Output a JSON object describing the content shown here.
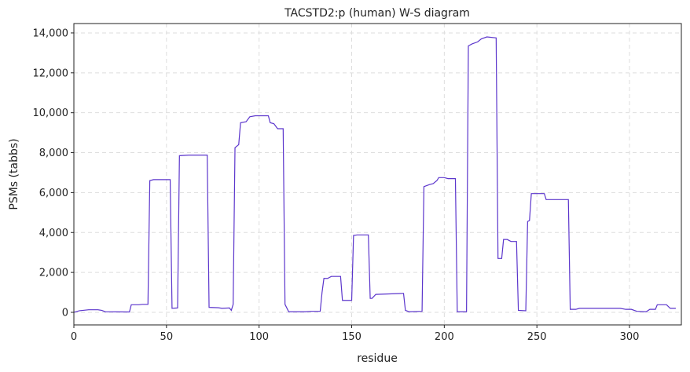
{
  "chart_data": {
    "type": "line",
    "title": "TACSTD2:p (human) W-S diagram",
    "x_label": "residue",
    "y_label": "PSMs (tabbs)",
    "xlim": [
      0,
      328
    ],
    "ylim": [
      -630,
      14470
    ],
    "xticks": [
      0,
      50,
      100,
      150,
      200,
      250,
      300
    ],
    "yticks": [
      0,
      {
        "value": 2000,
        "label": "2,000"
      },
      {
        "value": 4000,
        "label": "4,000"
      },
      {
        "value": 6000,
        "label": "6,000"
      },
      {
        "value": 8000,
        "label": "8,000"
      },
      {
        "value": 10000,
        "label": "10,000"
      },
      {
        "value": 12000,
        "label": "12,000"
      },
      {
        "value": 14000,
        "label": "14,000"
      }
    ],
    "grid": true,
    "x": [
      0,
      3,
      8,
      13,
      15,
      17,
      30,
      31,
      35,
      37,
      40,
      41,
      43,
      52,
      53,
      56,
      57,
      62,
      72,
      73,
      78,
      80,
      84,
      85,
      86,
      87,
      89,
      90,
      93,
      95,
      98,
      105,
      106,
      108,
      110,
      113,
      114,
      116,
      125,
      128,
      133,
      134,
      135,
      137,
      139,
      144,
      145,
      150,
      151,
      153,
      159,
      160,
      161,
      163,
      178,
      179,
      181,
      188,
      189,
      192,
      194,
      196,
      197,
      200,
      202,
      206,
      207,
      212,
      213,
      215,
      218,
      220,
      223,
      228,
      229,
      231,
      232,
      234,
      236,
      239,
      240,
      244,
      245,
      246,
      247,
      254,
      255,
      258,
      267,
      268,
      271,
      273,
      280,
      295,
      298,
      301,
      304,
      309,
      311,
      314,
      315,
      320,
      322,
      325
    ],
    "series": [
      {
        "color": "#5b35cc",
        "values": [
          0,
          80,
          130,
          130,
          100,
          30,
          20,
          380,
          380,
          400,
          400,
          6600,
          6650,
          6650,
          200,
          220,
          7850,
          7880,
          7880,
          250,
          230,
          200,
          220,
          100,
          400,
          8250,
          8400,
          9500,
          9550,
          9800,
          9850,
          9850,
          9500,
          9450,
          9200,
          9200,
          400,
          30,
          30,
          50,
          50,
          1000,
          1700,
          1700,
          1800,
          1800,
          600,
          600,
          3850,
          3880,
          3880,
          700,
          700,
          900,
          950,
          100,
          30,
          50,
          6300,
          6400,
          6450,
          6600,
          6750,
          6750,
          6700,
          6700,
          30,
          30,
          13350,
          13450,
          13550,
          13700,
          13800,
          13750,
          2700,
          2700,
          3650,
          3650,
          3550,
          3550,
          100,
          80,
          4550,
          4600,
          5950,
          5950,
          5650,
          5650,
          5650,
          150,
          150,
          200,
          200,
          200,
          150,
          150,
          50,
          30,
          150,
          150,
          380,
          380,
          200,
          200
        ]
      }
    ]
  }
}
